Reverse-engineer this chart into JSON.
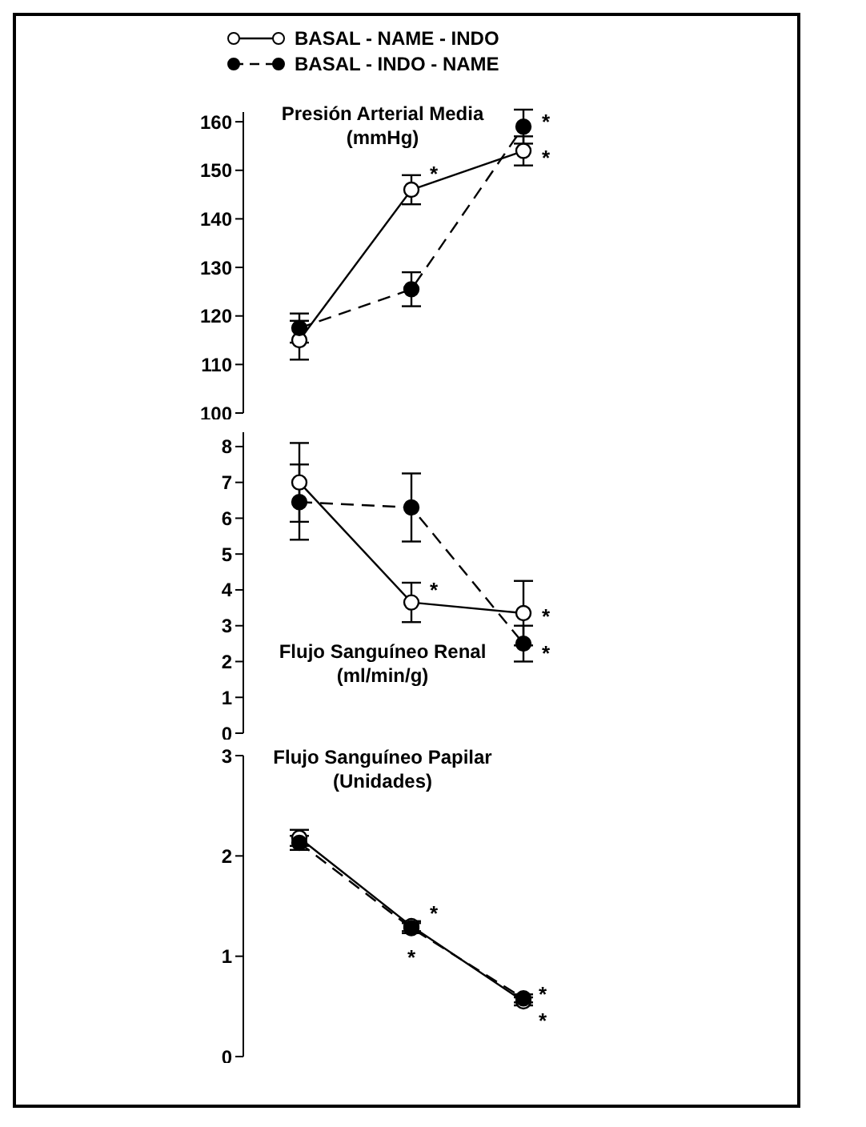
{
  "chart_data": [
    {
      "type": "line",
      "title": "Presión Arterial Media",
      "subtitle": "(mmHg)",
      "categories": [
        null,
        null,
        null
      ],
      "legend": "top",
      "marker": "circle",
      "ylim": [
        100,
        162
      ],
      "yticks": [
        100,
        110,
        120,
        130,
        140,
        150,
        160
      ],
      "grid": false,
      "series": [
        {
          "name": "BASAL - NAME - INDO",
          "color": "#000000",
          "line_style": "solid",
          "values": [
            115,
            146,
            154
          ],
          "errors": [
            4,
            3,
            3
          ]
        },
        {
          "name": "BASAL - INDO - NAME",
          "color": "#000000",
          "line_style": "dashed",
          "values": [
            117.5,
            125.5,
            159
          ],
          "errors": [
            3,
            3.5,
            3.5
          ]
        }
      ],
      "annotations": [
        "*",
        "*",
        "*"
      ]
    },
    {
      "type": "line",
      "title": "Flujo Sanguíneo Renal",
      "subtitle": "(ml/min/g)",
      "categories": [
        null,
        null,
        null
      ],
      "legend": false,
      "marker": "circle",
      "ylim": [
        0,
        8.4
      ],
      "yticks": [
        0,
        1,
        2,
        3,
        4,
        5,
        6,
        7,
        8
      ],
      "grid": false,
      "series": [
        {
          "color": "#000000",
          "line_style": "solid",
          "values": [
            7.0,
            3.65,
            3.35
          ],
          "errors": [
            1.1,
            0.55,
            0.9
          ]
        },
        {
          "color": "#000000",
          "line_style": "dashed",
          "values": [
            6.45,
            6.3,
            2.5
          ],
          "errors": [
            1.05,
            0.95,
            0.5
          ]
        }
      ],
      "annotations": [
        "*",
        "*",
        "*"
      ]
    },
    {
      "type": "line",
      "title": "Flujo Sanguíneo Papilar",
      "subtitle": "(Unidades)",
      "categories": [
        null,
        null,
        null
      ],
      "legend": false,
      "marker": "circle",
      "ylim": [
        0,
        3
      ],
      "yticks": [
        0,
        1,
        2,
        3
      ],
      "grid": false,
      "series": [
        {
          "color": "#000000",
          "line_style": "solid",
          "values": [
            2.18,
            1.3,
            0.55
          ],
          "errors": [
            0.08,
            0.05,
            0.04
          ]
        },
        {
          "color": "#000000",
          "line_style": "dashed",
          "values": [
            2.13,
            1.28,
            0.58
          ],
          "errors": [
            0.07,
            0.05,
            0.04
          ]
        }
      ],
      "annotations": [
        "*",
        "*",
        "*",
        "*"
      ]
    }
  ]
}
